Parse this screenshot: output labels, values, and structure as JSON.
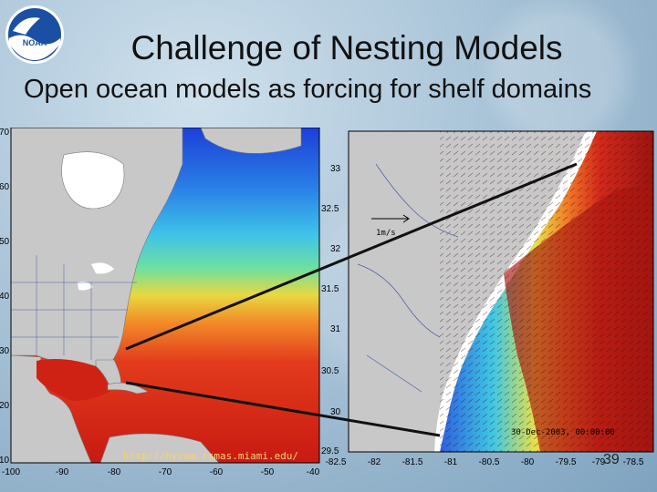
{
  "slide": {
    "title": "Challenge of Nesting Models",
    "subtitle": "Open ocean models as forcing for shelf domains",
    "slide_number": "39",
    "logo_text": "NOAA"
  },
  "left_map": {
    "x_ticks": [
      "-100",
      "-90",
      "-80",
      "-70",
      "-60",
      "-50",
      "-40"
    ],
    "y_ticks": [
      "70",
      "60",
      "50",
      "40",
      "30",
      "20",
      "10"
    ],
    "url": "http://hycom.rsmas.miami.edu/"
  },
  "right_map": {
    "x_ticks": [
      "-82.5",
      "-82",
      "-81.5",
      "-81",
      "-80.5",
      "-80",
      "-79.5",
      "-79",
      "-78.5"
    ],
    "y_ticks": [
      "33",
      "32.5",
      "32",
      "31.5",
      "31",
      "30.5",
      "30",
      "29.5"
    ],
    "vector_label": "1m/s",
    "timestamp": "30-Dec-2003, 00:00:00"
  }
}
